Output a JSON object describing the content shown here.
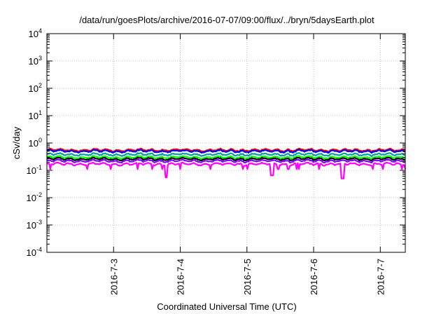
{
  "chart_data": {
    "type": "line",
    "title": "/data/run/goesPlots/archive/2016-07-07/09:00/flux/../bryn/5daysEarth.plot",
    "xlabel": "Coordinated Universal Time (UTC)",
    "ylabel": "cSv/day",
    "yscale": "log",
    "ylim": [
      0.0001,
      10000
    ],
    "y_ticks": [
      {
        "base": "10",
        "exp": "-4",
        "value": 0.0001
      },
      {
        "base": "10",
        "exp": "-3",
        "value": 0.001
      },
      {
        "base": "10",
        "exp": "-2",
        "value": 0.01
      },
      {
        "base": "10",
        "exp": "-1",
        "value": 0.1
      },
      {
        "base": "10",
        "exp": "0",
        "value": 1
      },
      {
        "base": "10",
        "exp": "1",
        "value": 10
      },
      {
        "base": "10",
        "exp": "2",
        "value": 100
      },
      {
        "base": "10",
        "exp": "3",
        "value": 1000
      },
      {
        "base": "10",
        "exp": "4",
        "value": 10000
      }
    ],
    "xlim": [
      "2016-07-02 00:00",
      "2016-07-07 09:00"
    ],
    "x_ticks": [
      "2016-7-3",
      "2016-7-4",
      "2016-7-5",
      "2016-7-6",
      "2016-7-7"
    ],
    "x_tick_dates": [
      "2016-07-03",
      "2016-07-04",
      "2016-07-05",
      "2016-07-06",
      "2016-07-07"
    ],
    "grid": true,
    "series": [
      {
        "color": "#ff0000",
        "level": 0.55
      },
      {
        "color": "#0000ff",
        "level": 0.5
      },
      {
        "color": "#00a0a0",
        "level": 0.38
      },
      {
        "color": "#00ff00",
        "level": 0.3
      },
      {
        "color": "#000000",
        "level": 0.26
      },
      {
        "color": "#8000ff",
        "level": 0.22
      },
      {
        "color": "#ff00ff",
        "level": 0.17
      }
    ],
    "dips": [
      {
        "date": "2016-07-03 19:00",
        "series": "#ff00ff",
        "value": 0.055
      },
      {
        "date": "2016-07-05 09:00",
        "series": "#ff00ff",
        "value": 0.065
      },
      {
        "date": "2016-07-06 10:30",
        "series": "#ff00ff",
        "value": 0.05
      }
    ]
  }
}
